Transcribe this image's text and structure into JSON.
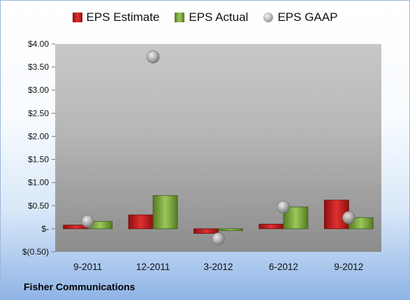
{
  "chart_data": {
    "type": "bar",
    "categories": [
      "9-2011",
      "12-2011",
      "3-2012",
      "6-2012",
      "9-2012"
    ],
    "series": [
      {
        "name": "EPS Estimate",
        "kind": "bar",
        "values": [
          0.08,
          0.3,
          -0.1,
          0.1,
          0.62
        ]
      },
      {
        "name": "EPS Actual",
        "kind": "bar",
        "values": [
          0.16,
          0.72,
          -0.04,
          0.47,
          0.24
        ]
      },
      {
        "name": "EPS GAAP",
        "kind": "point",
        "values": [
          0.16,
          3.72,
          -0.22,
          0.47,
          0.24
        ]
      }
    ],
    "yticks": [
      -0.5,
      0,
      0.5,
      1.0,
      1.5,
      2.0,
      2.5,
      3.0,
      3.5,
      4.0
    ],
    "ytick_labels": [
      "$(0.50)",
      "$-",
      "$0.50",
      "$1.00",
      "$1.50",
      "$2.00",
      "$2.50",
      "$3.00",
      "$3.50",
      "$4.00"
    ],
    "ylim": [
      -0.5,
      4.0
    ],
    "legend_position": "top",
    "colors": {
      "EPS Estimate": "#d42020",
      "EPS Actual": "#7bab3a",
      "EPS GAAP": "#a9a9a9"
    }
  },
  "footer": {
    "company": "Fisher Communications"
  }
}
